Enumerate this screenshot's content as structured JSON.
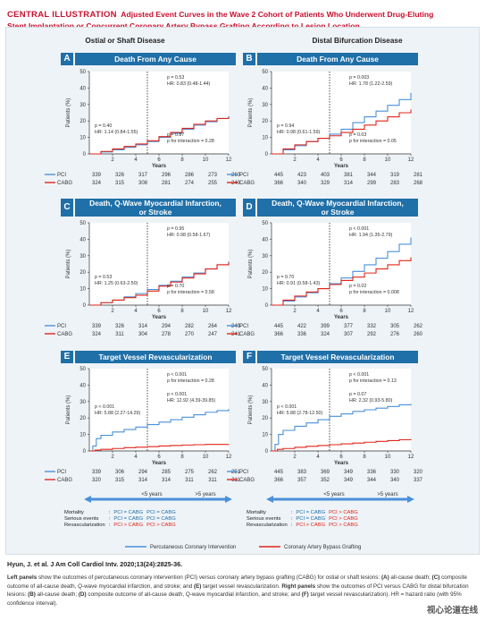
{
  "header": {
    "tag": "CENTRAL ILLUSTRATION",
    "title_line1": "Adjusted Event Curves in the Wave 2 Cohort of Patients Who Underwent Drug-Eluting",
    "title_line2": "Stent Implantation or Concurrent Coronary Artery Bypass Grafting According to Lesion Location"
  },
  "columns": {
    "left": "Ostial or Shaft Disease",
    "right": "Distal Bifurcation Disease"
  },
  "colors": {
    "pci": "#4a90d9",
    "cabg": "#e0261b",
    "panel_header": "#1f6fa8"
  },
  "risk_labels": {
    "pci": "PCI",
    "cabg": "CABG"
  },
  "chart_data": [
    {
      "id": "A",
      "type": "line",
      "title": "Death From Any Cause",
      "xlabel": "Years",
      "ylabel": "Patients (%)",
      "xlim": [
        0,
        12
      ],
      "ylim": [
        0,
        50
      ],
      "xticks": [
        2,
        4,
        6,
        8,
        10,
        12
      ],
      "yticks": [
        0,
        10,
        20,
        30,
        40,
        50
      ],
      "landmark_year": 5,
      "series": [
        {
          "name": "PCI",
          "x": [
            0,
            1,
            2,
            3,
            4,
            5,
            6,
            7,
            8,
            9,
            10,
            11,
            12
          ],
          "y": [
            0,
            1.2,
            2.5,
            4,
            5.5,
            7.5,
            10,
            12.5,
            15,
            17.5,
            19.5,
            21.5,
            23
          ]
        },
        {
          "name": "CABG",
          "x": [
            0,
            1,
            2,
            3,
            4,
            5,
            6,
            7,
            8,
            9,
            10,
            11,
            12
          ],
          "y": [
            0,
            1.5,
            3,
            4.5,
            6,
            8,
            10.5,
            13,
            15.5,
            18,
            20,
            21.5,
            22.5
          ]
        }
      ],
      "annotations": [
        {
          "line1": "p = 0.53",
          "line2": "HR: 0.83 (0.48-1.44)"
        },
        {
          "line1": "p = 0.40",
          "line2": "HR: 1.14 (0.84-1.55)"
        },
        {
          "line1": "p = 0.87",
          "line2": "p for interaction = 0.28"
        }
      ],
      "risk_pci": [
        "339",
        "326",
        "317",
        "296",
        "286",
        "273",
        "260"
      ],
      "risk_cabg": [
        "324",
        "315",
        "308",
        "281",
        "274",
        "255",
        "249"
      ]
    },
    {
      "id": "B",
      "type": "line",
      "title": "Death From Any Cause",
      "xlabel": "Years",
      "ylabel": "Patients (%)",
      "xlim": [
        0,
        12
      ],
      "ylim": [
        0,
        50
      ],
      "xticks": [
        2,
        4,
        6,
        8,
        10,
        12
      ],
      "yticks": [
        0,
        10,
        20,
        30,
        40,
        50
      ],
      "landmark_year": 5,
      "series": [
        {
          "name": "PCI",
          "x": [
            0,
            1,
            2,
            3,
            4,
            5,
            6,
            7,
            8,
            9,
            10,
            11,
            12
          ],
          "y": [
            0,
            2.5,
            5,
            7.5,
            9.5,
            12,
            15,
            19,
            22.5,
            26,
            29.5,
            33,
            37
          ]
        },
        {
          "name": "CABG",
          "x": [
            0,
            1,
            2,
            3,
            4,
            5,
            6,
            7,
            8,
            9,
            10,
            11,
            12
          ],
          "y": [
            0,
            3,
            5.5,
            7.5,
            9.5,
            11,
            13,
            15,
            17.5,
            20,
            22.5,
            25,
            27
          ]
        }
      ],
      "annotations": [
        {
          "line1": "p = 0.003",
          "line2": "HR: 1.78 (1.22-2.59)"
        },
        {
          "line1": "p = 0.94",
          "line2": "HR: 0.98 (0.61-1.59)"
        },
        {
          "line1": "p = 0.03",
          "line2": "p for interaction = 0.05"
        }
      ],
      "risk_pci": [
        "445",
        "423",
        "403",
        "381",
        "344",
        "319",
        "281"
      ],
      "risk_cabg": [
        "366",
        "340",
        "329",
        "314",
        "299",
        "283",
        "268"
      ]
    },
    {
      "id": "C",
      "type": "line",
      "title": "Death, Q-Wave Myocardial Infarction,\nor Stroke",
      "xlabel": "Years",
      "ylabel": "Patients (%)",
      "xlim": [
        0,
        12
      ],
      "ylim": [
        0,
        50
      ],
      "xticks": [
        2,
        4,
        6,
        8,
        10,
        12
      ],
      "yticks": [
        0,
        10,
        20,
        30,
        40,
        50
      ],
      "landmark_year": 5,
      "series": [
        {
          "name": "PCI",
          "x": [
            0,
            1,
            2,
            3,
            4,
            5,
            6,
            7,
            8,
            9,
            10,
            11,
            12
          ],
          "y": [
            0,
            1.5,
            3,
            5,
            7,
            9.5,
            12,
            14.5,
            17,
            19.5,
            22,
            24.5,
            26.5
          ]
        },
        {
          "name": "CABG",
          "x": [
            0,
            1,
            2,
            3,
            4,
            5,
            6,
            7,
            8,
            9,
            10,
            11,
            12
          ],
          "y": [
            0,
            1.5,
            3,
            4.5,
            6,
            8.5,
            11.5,
            14,
            16.5,
            19,
            22,
            24.5,
            26
          ]
        }
      ],
      "annotations": [
        {
          "line1": "p = 0.95",
          "line2": "HR: 0.98 (0.58-1.67)"
        },
        {
          "line1": "p = 0.53",
          "line2": "HR: 1.25 (0.63-2.50)"
        },
        {
          "line1": "p = 0.70",
          "line2": "p for interaction = 0.58"
        }
      ],
      "risk_pci": [
        "339",
        "326",
        "314",
        "294",
        "282",
        "264",
        "249"
      ],
      "risk_cabg": [
        "324",
        "311",
        "304",
        "278",
        "270",
        "247",
        "241"
      ]
    },
    {
      "id": "D",
      "type": "line",
      "title": "Death, Q-Wave Myocardial Infarction,\nor Stroke",
      "xlabel": "Years",
      "ylabel": "Patients (%)",
      "xlim": [
        0,
        12
      ],
      "ylim": [
        0,
        50
      ],
      "xticks": [
        2,
        4,
        6,
        8,
        10,
        12
      ],
      "yticks": [
        0,
        10,
        20,
        30,
        40,
        50
      ],
      "landmark_year": 5,
      "series": [
        {
          "name": "PCI",
          "x": [
            0,
            1,
            2,
            3,
            4,
            5,
            6,
            7,
            8,
            9,
            10,
            11,
            12
          ],
          "y": [
            0,
            2.5,
            5,
            7.5,
            10,
            13,
            16.5,
            20.5,
            24.5,
            28.5,
            32.5,
            37,
            41
          ]
        },
        {
          "name": "CABG",
          "x": [
            0,
            1,
            2,
            3,
            4,
            5,
            6,
            7,
            8,
            9,
            10,
            11,
            12
          ],
          "y": [
            0,
            3,
            5.5,
            8,
            10,
            12.5,
            15,
            17,
            19.5,
            22,
            24.5,
            27,
            29
          ]
        }
      ],
      "annotations": [
        {
          "line1": "p < 0.001",
          "line2": "HR: 1.94 (1.35-2.79)"
        },
        {
          "line1": "p = 0.70",
          "line2": "HR: 0.91 (0.58-1.43)"
        },
        {
          "line1": "p = 0.02",
          "line2": "p for interaction = 0.008"
        }
      ],
      "risk_pci": [
        "445",
        "422",
        "399",
        "377",
        "332",
        "305",
        "262"
      ],
      "risk_cabg": [
        "366",
        "336",
        "324",
        "307",
        "292",
        "276",
        "260"
      ]
    },
    {
      "id": "E",
      "type": "line",
      "title": "Target Vessel Revascularization",
      "xlabel": "Years",
      "ylabel": "Patients (%)",
      "xlim": [
        0,
        12
      ],
      "ylim": [
        0,
        50
      ],
      "xticks": [
        2,
        4,
        6,
        8,
        10,
        12
      ],
      "yticks": [
        0,
        10,
        20,
        30,
        40,
        50
      ],
      "landmark_year": 5,
      "series": [
        {
          "name": "PCI",
          "x": [
            0,
            0.3,
            0.6,
            1,
            2,
            3,
            4,
            5,
            6,
            7,
            8,
            9,
            10,
            11,
            12
          ],
          "y": [
            0,
            3,
            7.5,
            9.5,
            11.5,
            13,
            14.5,
            16,
            17.5,
            19,
            20.5,
            22,
            23.5,
            24.5,
            25.5
          ]
        },
        {
          "name": "CABG",
          "x": [
            0,
            0.5,
            1,
            2,
            3,
            4,
            5,
            6,
            7,
            8,
            9,
            10,
            11,
            12
          ],
          "y": [
            0,
            0.5,
            1,
            1.5,
            2,
            2.3,
            2.6,
            3,
            3.3,
            3.6,
            3.8,
            4,
            4,
            4.1
          ]
        }
      ],
      "annotations": [
        {
          "line1": "p < 0.001",
          "line2": "p for interaction = 0.28"
        },
        {
          "line1": "p < 0.001",
          "line2": "HR: 12.92 (4.39-39.85)"
        },
        {
          "line1": "p < 0.001",
          "line2": "HR: 5.88 (2.27-14.29)"
        }
      ],
      "risk_pci": [
        "339",
        "306",
        "294",
        "285",
        "275",
        "262",
        "251"
      ],
      "risk_cabg": [
        "320",
        "315",
        "314",
        "314",
        "311",
        "311",
        "311"
      ]
    },
    {
      "id": "F",
      "type": "line",
      "title": "Target Vessel Revascularization",
      "xlabel": "Years",
      "ylabel": "Patients (%)",
      "xlim": [
        0,
        12
      ],
      "ylim": [
        0,
        50
      ],
      "xticks": [
        2,
        4,
        6,
        8,
        10,
        12
      ],
      "yticks": [
        0,
        10,
        20,
        30,
        40,
        50
      ],
      "landmark_year": 5,
      "series": [
        {
          "name": "PCI",
          "x": [
            0,
            0.3,
            0.6,
            1,
            2,
            3,
            4,
            5,
            6,
            7,
            8,
            9,
            10,
            11,
            12
          ],
          "y": [
            0,
            4,
            10,
            12.5,
            15,
            17,
            19,
            21,
            22.5,
            24,
            25,
            26,
            27,
            28,
            28.5
          ]
        },
        {
          "name": "CABG",
          "x": [
            0,
            0.5,
            1,
            2,
            3,
            4,
            5,
            6,
            7,
            8,
            9,
            10,
            11,
            12
          ],
          "y": [
            0,
            1,
            1.5,
            2.2,
            2.8,
            3.3,
            3.8,
            4.3,
            4.8,
            5.3,
            5.8,
            6.3,
            6.8,
            7.2
          ]
        }
      ],
      "annotations": [
        {
          "line1": "p < 0.001",
          "line2": "p for interaction = 0.13"
        },
        {
          "line1": "p = 0.07",
          "line2": "HR: 2.32 (0.93-5.80)"
        },
        {
          "line1": "p < 0.001",
          "line2": "HR: 5.88 (2.78-12.50)"
        }
      ],
      "risk_pci": [
        "445",
        "383",
        "369",
        "349",
        "336",
        "330",
        "320"
      ],
      "risk_cabg": [
        "366",
        "357",
        "352",
        "349",
        "344",
        "340",
        "337"
      ]
    }
  ],
  "summary": {
    "periods": [
      "<5 years",
      ">5 years"
    ],
    "left_rows": [
      {
        "label": "Mortality",
        "early": "PCI = CABG",
        "late": "PCI = CABG"
      },
      {
        "label": "Serious events",
        "early": "PCI = CABG",
        "late": "PCI = CABG"
      },
      {
        "label": "Revascularization",
        "early": "PCI > CABG",
        "late": "PCI > CABG"
      }
    ],
    "right_rows": [
      {
        "label": "Mortality",
        "early": "PCI = CABG",
        "late": "PCI > CABG"
      },
      {
        "label": "Serious events",
        "early": "PCI = CABG",
        "late": "PCI > CABG"
      },
      {
        "label": "Revascularization",
        "early": "PCI > CABG",
        "late": "PCI > CABG"
      }
    ]
  },
  "bottom_legend": {
    "pci": "Percutaneous Coronary Intervention",
    "cabg": "Coronary Artery Bypass Grafting"
  },
  "citation": "Hyun, J. et al. J Am Coll Cardiol Intv. 2020;13(24):2825-36.",
  "caption": {
    "left_bold": "Left panels",
    "text1": " show the outcomes of percutaneous coronary intervention (PCI) versus coronary artery bypass grafting (CABG) for ostial or shaft lesions: ",
    "A_bold": "(A)",
    "text2": " all-cause death; ",
    "C_bold": "(C)",
    "text3": " composite outcome of all-cause death, Q-wave myocardial infarction, and stroke; and ",
    "E_bold": "(E)",
    "text4": " target vessel revascularization. ",
    "right_bold": "Right panels",
    "text5": " show the outcomes of PCI versus CABG for distal bifurcation lesions: ",
    "B_bold": "(B)",
    "text6": " all-cause death; ",
    "D_bold": "(D)",
    "text7": " composite outcome of all-cause death, Q-wave myocardial infarction, and stroke; and ",
    "F_bold": "(F)",
    "text8": " target vessel revascularization). HR = hazard ratio (with 95% confidence interval)."
  },
  "watermark": "视心论道在线"
}
